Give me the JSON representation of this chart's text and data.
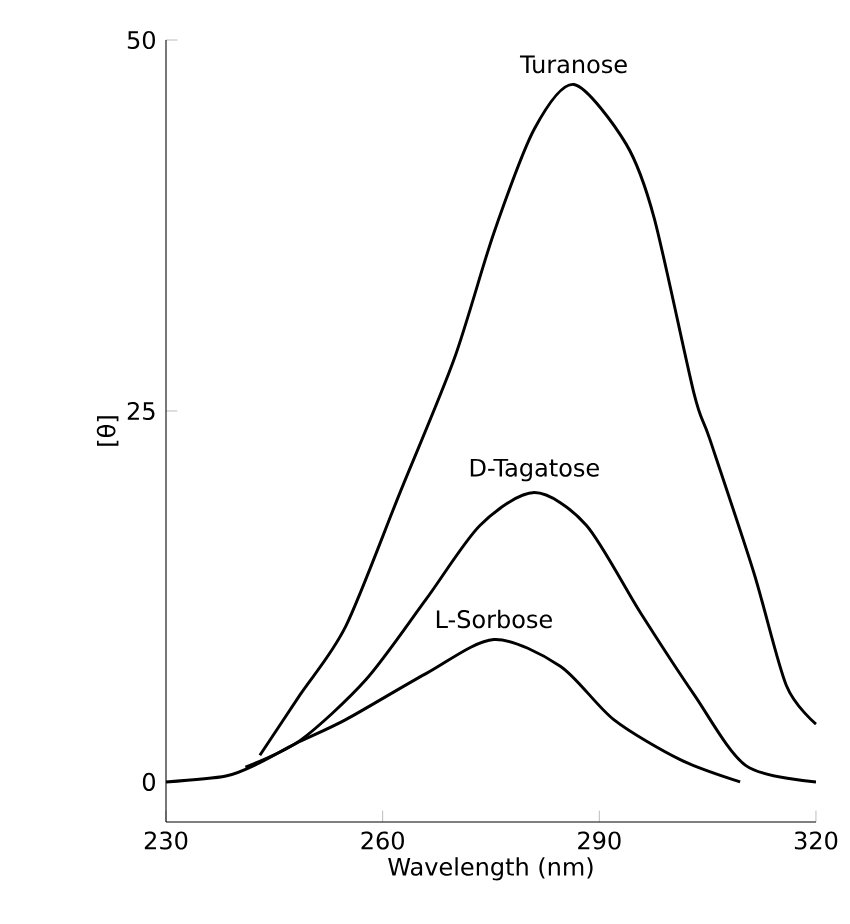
{
  "chart_data": {
    "type": "line",
    "xlabel": "Wavelength (nm)",
    "ylabel": "[θ]",
    "xlim": [
      230,
      320
    ],
    "xticks": [
      230,
      260,
      290,
      320
    ],
    "ylim": [
      -2.7,
      50
    ],
    "yticks": [
      0,
      25,
      50
    ],
    "marker": "none",
    "line_style": "solid",
    "grid": false,
    "legend": false,
    "series": [
      {
        "name": "Turanose",
        "color": "#000000",
        "x": [
          243,
          248.6,
          254.9,
          262.4,
          269.9,
          275.4,
          281,
          286.5,
          293.7,
          297.6,
          303.1,
          305.3,
          311.4,
          315.9,
          320
        ],
        "values": [
          1.8,
          5.9,
          10.5,
          19.5,
          28.5,
          37.0,
          44,
          47.0,
          43,
          38,
          26.2,
          23.1,
          14.1,
          6.5,
          3.9
        ]
      },
      {
        "name": "D-Tagatose",
        "color": "#000000",
        "x": [
          241,
          248.6,
          257.7,
          266,
          273.5,
          281,
          288.2,
          295.7,
          303.1,
          310.3,
          320
        ],
        "values": [
          1.0,
          2.8,
          6.9,
          12.3,
          17.3,
          19.5,
          17.3,
          11.4,
          5.9,
          1.1,
          0
        ]
      },
      {
        "name": "L-Sorbose",
        "color": "#000000",
        "x": [
          230,
          238.3,
          243,
          248,
          254.9,
          266,
          275.4,
          284.6,
          292,
          301.2,
          309.5
        ],
        "values": [
          0,
          0.4,
          1.3,
          2.6,
          4.2,
          7.3,
          9.6,
          7.8,
          4.2,
          1.5,
          0
        ]
      }
    ]
  }
}
